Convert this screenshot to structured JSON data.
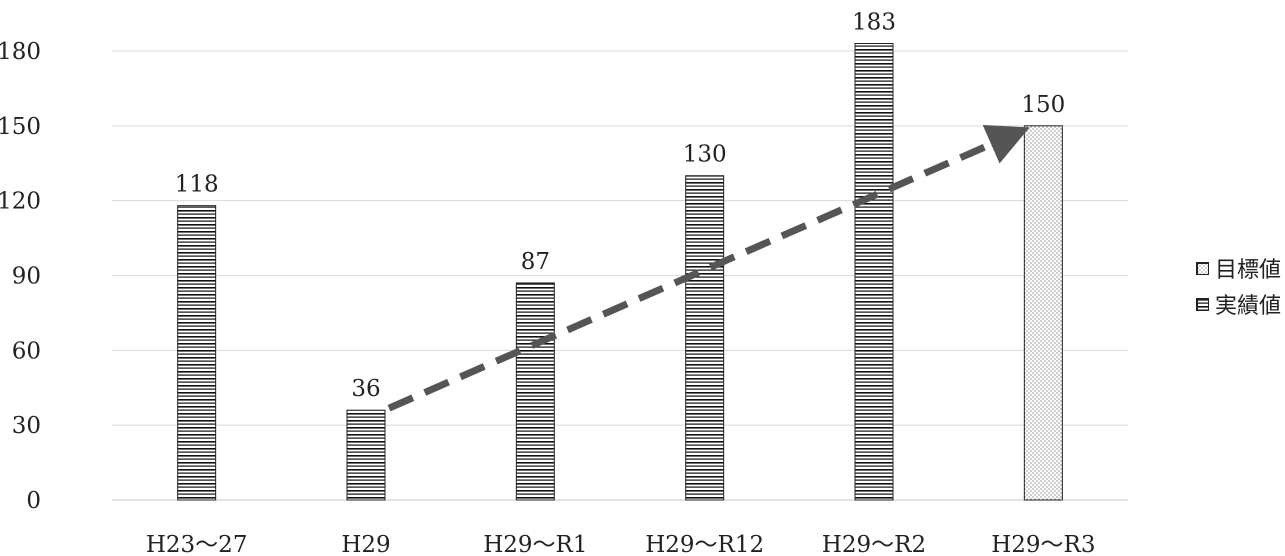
{
  "chart_data": {
    "type": "bar",
    "title": "",
    "xlabel": "",
    "ylabel": "",
    "ylim": [
      0,
      180
    ],
    "yticks": [
      0,
      30,
      60,
      90,
      120,
      150,
      180
    ],
    "categories": [
      "H23〜27",
      "H29",
      "H29〜R1",
      "H29〜R12",
      "H29〜R2",
      "H29〜R3"
    ],
    "series": [
      {
        "name": "実績値",
        "values": [
          118,
          36,
          87,
          130,
          183,
          null
        ],
        "pattern": "horizontal-stripes"
      },
      {
        "name": "目標値",
        "values": [
          null,
          null,
          null,
          null,
          null,
          150
        ],
        "pattern": "dots"
      }
    ],
    "data_labels": [
      "118",
      "36",
      "87",
      "130",
      "183",
      "150"
    ],
    "trend_arrow": {
      "from_category": "H29",
      "from_value": 36,
      "to_category": "H29〜R3",
      "to_value": 150,
      "style": "dashed",
      "color": "#555555"
    },
    "grid": true,
    "legend_position": "right"
  },
  "legend": {
    "items": [
      {
        "label": "目標値",
        "pattern": "dots"
      },
      {
        "label": "実績値",
        "pattern": "horizontal-stripes"
      }
    ]
  }
}
